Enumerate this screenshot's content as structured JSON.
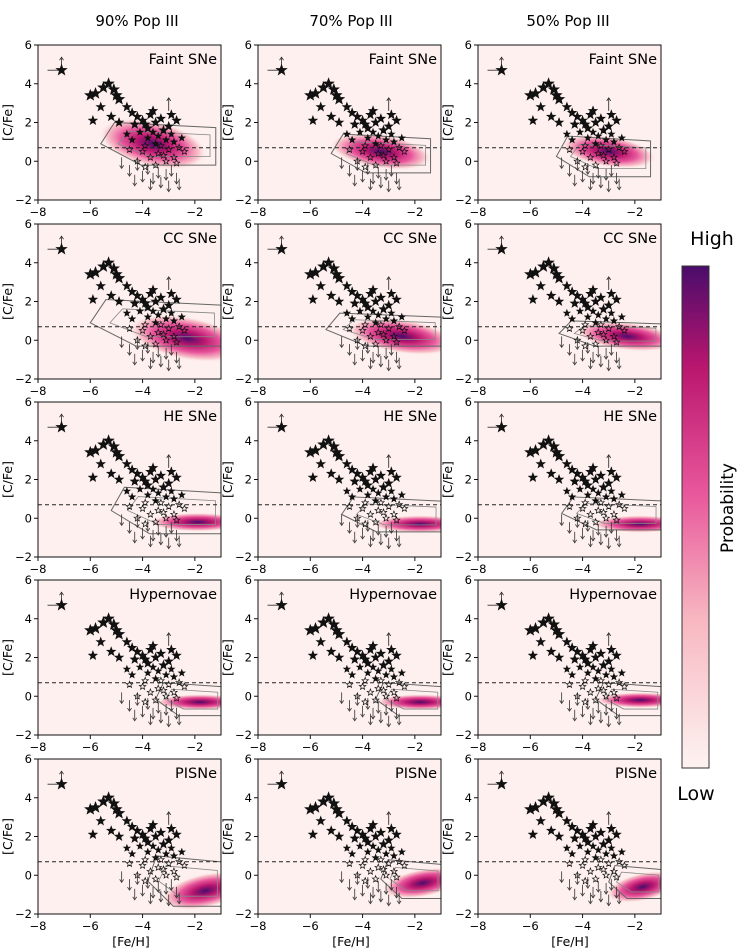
{
  "figure": {
    "column_titles": [
      "90% Pop III",
      "70% Pop III",
      "50% Pop III"
    ],
    "row_labels": [
      "Faint SNe",
      "CC SNe",
      "HE SNe",
      "Hypernovae",
      "PISNe"
    ],
    "xlabel": "[Fe/H]",
    "ylabel": "[C/Fe]",
    "colorbar": {
      "high": "High",
      "low": "Low",
      "label": "Probability"
    }
  },
  "chart_data": {
    "type": "scatter",
    "panel_grid": {
      "rows": 5,
      "cols": 3
    },
    "xlim": [
      -8,
      -1
    ],
    "ylim": [
      -2,
      6
    ],
    "xticks": [
      -8,
      -6,
      -4,
      -2
    ],
    "yticks": [
      -2,
      0,
      2,
      4,
      6
    ],
    "xtick_labels": [
      "−8",
      "−6",
      "−4",
      "−2"
    ],
    "ytick_labels": [
      "−2",
      "0",
      "2",
      "4",
      "6"
    ],
    "reference_line": {
      "y": 0.7,
      "style": "dashed"
    },
    "grid": false,
    "background_color": "#fdf0ee",
    "colormap": [
      "#fdf3f1",
      "#f7b6c0",
      "#e8569b",
      "#b9166e",
      "#4a0c6b"
    ],
    "observed_stars": [
      [
        -7.1,
        4.7
      ],
      [
        -6.0,
        3.4
      ],
      [
        -5.8,
        3.5
      ],
      [
        -5.5,
        3.8
      ],
      [
        -5.3,
        4.0
      ],
      [
        -5.1,
        3.7
      ],
      [
        -5.0,
        3.4
      ],
      [
        -4.9,
        3.2
      ],
      [
        -4.6,
        2.8
      ],
      [
        -4.4,
        2.5
      ],
      [
        -4.2,
        2.3
      ],
      [
        -4.0,
        2.1
      ],
      [
        -3.9,
        1.9
      ],
      [
        -3.8,
        1.7
      ],
      [
        -3.7,
        2.4
      ],
      [
        -3.6,
        1.5
      ],
      [
        -3.5,
        2.0
      ],
      [
        -3.4,
        1.3
      ],
      [
        -3.3,
        2.2
      ],
      [
        -3.2,
        1.6
      ],
      [
        -3.1,
        1.1
      ],
      [
        -3.0,
        1.8
      ],
      [
        -2.9,
        1.4
      ],
      [
        -2.8,
        1.0
      ],
      [
        -2.7,
        2.1
      ],
      [
        -3.5,
        0.9
      ],
      [
        -3.8,
        1.2
      ],
      [
        -4.1,
        1.5
      ],
      [
        -4.3,
        1.9
      ],
      [
        -3.3,
        0.8
      ],
      [
        -3.0,
        0.6
      ],
      [
        -2.6,
        0.7
      ],
      [
        -4.6,
        1.4
      ],
      [
        -4.9,
        2.0
      ],
      [
        -5.2,
        2.3
      ],
      [
        -4.4,
        1.1
      ],
      [
        -3.6,
        2.6
      ],
      [
        -2.5,
        1.2
      ],
      [
        -2.9,
        2.4
      ],
      [
        -3.9,
        0.8
      ],
      [
        -4.0,
        0.5
      ],
      [
        -3.4,
        0.4
      ],
      [
        -3.2,
        0.3
      ],
      [
        -2.8,
        0.2
      ],
      [
        -2.4,
        0.5
      ],
      [
        -3.7,
        0.2
      ],
      [
        -4.2,
        0.0
      ],
      [
        -3.1,
        0.0
      ],
      [
        -3.5,
        -0.2
      ],
      [
        -2.7,
        -0.1
      ],
      [
        -3.9,
        -0.3
      ],
      [
        -4.5,
        0.6
      ],
      [
        -5.6,
        2.8
      ],
      [
        -5.9,
        2.1
      ]
    ],
    "upper_limits": [
      [
        -4.8,
        0.2
      ],
      [
        -4.5,
        -0.2
      ],
      [
        -4.2,
        0.1
      ],
      [
        -4.0,
        -0.5
      ],
      [
        -3.8,
        -0.1
      ],
      [
        -3.6,
        -0.6
      ],
      [
        -3.4,
        -0.3
      ],
      [
        -3.3,
        -0.8
      ],
      [
        -3.1,
        -0.4
      ],
      [
        -3.0,
        -1.0
      ],
      [
        -2.9,
        -0.2
      ],
      [
        -2.7,
        -0.6
      ],
      [
        -2.6,
        -0.9
      ],
      [
        -3.7,
        -0.9
      ],
      [
        -4.3,
        -0.7
      ]
    ],
    "lower_limits": [
      [
        -7.1,
        4.7
      ],
      [
        -3.0,
        2.6
      ]
    ],
    "panels": [
      {
        "model": "Faint SNe",
        "pop3_fraction": "90% Pop III",
        "density_center": [
          -3.6,
          0.9
        ],
        "density_width": [
          1.5,
          0.75
        ],
        "density_tilt": -0.3,
        "contour_box": [
          -5.6,
          -1.2,
          -0.2,
          2.0
        ]
      },
      {
        "model": "Faint SNe",
        "pop3_fraction": "70% Pop III",
        "density_center": [
          -3.3,
          0.5
        ],
        "density_width": [
          1.4,
          0.55
        ],
        "density_tilt": -0.2,
        "contour_box": [
          -5.2,
          -1.4,
          -0.6,
          1.4
        ]
      },
      {
        "model": "Faint SNe",
        "pop3_fraction": "50% Pop III",
        "density_center": [
          -3.0,
          0.5
        ],
        "density_width": [
          1.3,
          0.5
        ],
        "density_tilt": -0.2,
        "contour_box": [
          -5.0,
          -1.4,
          -0.8,
          1.3
        ]
      },
      {
        "model": "CC SNe",
        "pop3_fraction": "90% Pop III",
        "density_center": [
          -2.3,
          0.1
        ],
        "density_width": [
          1.6,
          0.7
        ],
        "density_tilt": -0.25,
        "contour_box": [
          -6.0,
          -1.0,
          -0.3,
          2.1
        ]
      },
      {
        "model": "CC SNe",
        "pop3_fraction": "70% Pop III",
        "density_center": [
          -2.5,
          0.2
        ],
        "density_width": [
          1.5,
          0.55
        ],
        "density_tilt": -0.2,
        "contour_box": [
          -5.4,
          -1.0,
          -0.3,
          1.4
        ]
      },
      {
        "model": "CC SNe",
        "pop3_fraction": "50% Pop III",
        "density_center": [
          -2.3,
          0.2
        ],
        "density_width": [
          1.4,
          0.45
        ],
        "density_tilt": -0.15,
        "contour_box": [
          -4.9,
          -1.0,
          -0.3,
          1.0
        ]
      },
      {
        "model": "HE SNe",
        "pop3_fraction": "90% Pop III",
        "density_center": [
          -1.9,
          -0.2
        ],
        "density_width": [
          1.3,
          0.3
        ],
        "density_tilt": 0.0,
        "contour_box": [
          -5.2,
          -1.0,
          -0.8,
          1.6
        ]
      },
      {
        "model": "HE SNe",
        "pop3_fraction": "70% Pop III",
        "density_center": [
          -1.8,
          -0.3
        ],
        "density_width": [
          1.3,
          0.28
        ],
        "density_tilt": 0.0,
        "contour_box": [
          -4.8,
          -1.0,
          -0.7,
          1.1
        ]
      },
      {
        "model": "HE SNe",
        "pop3_fraction": "50% Pop III",
        "density_center": [
          -1.8,
          -0.3
        ],
        "density_width": [
          1.3,
          0.28
        ],
        "density_tilt": 0.0,
        "contour_box": [
          -4.8,
          -1.0,
          -0.6,
          1.1
        ]
      },
      {
        "model": "Hypernovae",
        "pop3_fraction": "90% Pop III",
        "density_center": [
          -1.8,
          -0.3
        ],
        "density_width": [
          1.2,
          0.25
        ],
        "density_tilt": 0.0,
        "contour_box": [
          -3.5,
          -1.0,
          -1.0,
          0.7
        ]
      },
      {
        "model": "Hypernovae",
        "pop3_fraction": "70% Pop III",
        "density_center": [
          -1.8,
          -0.3
        ],
        "density_width": [
          1.2,
          0.25
        ],
        "density_tilt": 0.0,
        "contour_box": [
          -3.5,
          -1.0,
          -1.0,
          0.7
        ]
      },
      {
        "model": "Hypernovae",
        "pop3_fraction": "50% Pop III",
        "density_center": [
          -1.8,
          -0.2
        ],
        "density_width": [
          1.2,
          0.25
        ],
        "density_tilt": 0.0,
        "contour_box": [
          -3.5,
          -1.0,
          -1.0,
          0.7
        ]
      },
      {
        "model": "PISNe",
        "pop3_fraction": "90% Pop III",
        "density_center": [
          -1.6,
          -0.8
        ],
        "density_width": [
          1.2,
          0.55
        ],
        "density_tilt": 0.3,
        "contour_box": [
          -3.8,
          -1.0,
          -1.6,
          1.0
        ]
      },
      {
        "model": "PISNe",
        "pop3_fraction": "70% Pop III",
        "density_center": [
          -1.7,
          -0.4
        ],
        "density_width": [
          1.1,
          0.45
        ],
        "density_tilt": 0.25,
        "contour_box": [
          -3.3,
          -1.0,
          -1.2,
          0.8
        ]
      },
      {
        "model": "PISNe",
        "pop3_fraction": "50% Pop III",
        "density_center": [
          -1.7,
          -0.6
        ],
        "density_width": [
          1.0,
          0.45
        ],
        "density_tilt": 0.3,
        "contour_box": [
          -3.0,
          -1.0,
          -1.2,
          0.5
        ]
      }
    ]
  }
}
